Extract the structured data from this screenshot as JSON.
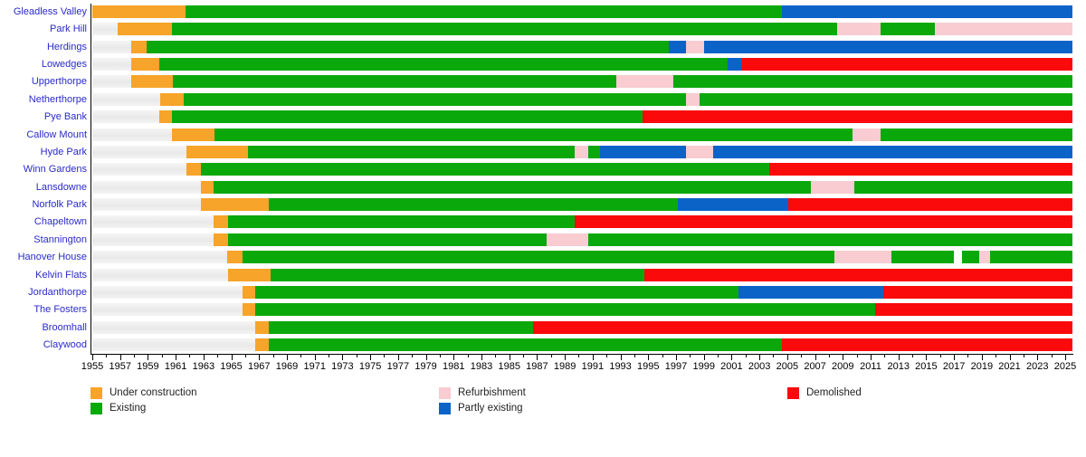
{
  "chart_data": {
    "type": "bar",
    "subtype": "gantt-timeline",
    "title": "",
    "xlabel": "",
    "ylabel": "",
    "axis": {
      "min_year": 1955,
      "max_year": 2025.5,
      "labeled_tick_years": [
        1955,
        1957,
        1959,
        1961,
        1963,
        1965,
        1967,
        1969,
        1971,
        1973,
        1975,
        1977,
        1979,
        1981,
        1983,
        1985,
        1987,
        1989,
        1991,
        1993,
        1995,
        1997,
        1999,
        2001,
        2003,
        2005,
        2007,
        2009,
        2011,
        2013,
        2015,
        2017,
        2019,
        2021,
        2023,
        2025
      ],
      "minor_tick_step": 1,
      "grid": false
    },
    "statuses": {
      "not_built": {
        "label": "",
        "color": "#eeeeee"
      },
      "under_construction": {
        "label": "Under construction",
        "color": "#f6a42a"
      },
      "existing": {
        "label": "Existing",
        "color": "#0ba80b"
      },
      "refurbishment": {
        "label": "Refurbishment",
        "color": "#f8ccd1"
      },
      "partly_existing": {
        "label": "Partly existing",
        "color": "#0b63c8"
      },
      "demolished": {
        "label": "Demolished",
        "color": "#fa0a0a"
      },
      "gap": {
        "label": "",
        "color": "#ffffff"
      }
    },
    "legend_columns": [
      {
        "items": [
          {
            "status": "under_construction"
          },
          {
            "status": "existing"
          }
        ]
      },
      {
        "items": [
          {
            "status": "refurbishment"
          },
          {
            "status": "partly_existing"
          }
        ]
      },
      {
        "items": [
          {
            "status": "demolished"
          }
        ]
      }
    ],
    "rows": [
      {
        "name": "Gleadless Valley",
        "segments": [
          [
            "under_construction",
            1955,
            1961.7
          ],
          [
            "existing",
            1961.7,
            2004.6
          ],
          [
            "partly_existing",
            2004.6,
            2025.5
          ]
        ]
      },
      {
        "name": "Park Hill",
        "segments": [
          [
            "not_built",
            1955,
            1956.8
          ],
          [
            "under_construction",
            1956.8,
            1960.7
          ],
          [
            "existing",
            1960.7,
            2008.6
          ],
          [
            "refurbishment",
            2008.6,
            2011.7
          ],
          [
            "existing",
            2011.7,
            2015.6
          ],
          [
            "refurbishment",
            2015.6,
            2025.5
          ]
        ]
      },
      {
        "name": "Herdings",
        "segments": [
          [
            "not_built",
            1955,
            1957.8
          ],
          [
            "under_construction",
            1957.8,
            1958.9
          ],
          [
            "existing",
            1958.9,
            1996.5
          ],
          [
            "partly_existing",
            1996.5,
            1997.7
          ],
          [
            "refurbishment",
            1997.7,
            1999.0
          ],
          [
            "partly_existing",
            1999.0,
            2025.5
          ]
        ]
      },
      {
        "name": "Lowedges",
        "segments": [
          [
            "not_built",
            1955,
            1957.8
          ],
          [
            "under_construction",
            1957.8,
            1959.8
          ],
          [
            "existing",
            1959.8,
            2000.7
          ],
          [
            "partly_existing",
            2000.7,
            2001.7
          ],
          [
            "demolished",
            2001.7,
            2025.5
          ]
        ]
      },
      {
        "name": "Upperthorpe",
        "segments": [
          [
            "not_built",
            1955,
            1957.8
          ],
          [
            "under_construction",
            1957.8,
            1960.8
          ],
          [
            "existing",
            1960.8,
            1992.7
          ],
          [
            "refurbishment",
            1992.7,
            1996.8
          ],
          [
            "existing",
            1996.8,
            2025.5
          ]
        ]
      },
      {
        "name": "Netherthorpe",
        "segments": [
          [
            "not_built",
            1955,
            1959.9
          ],
          [
            "under_construction",
            1959.9,
            1961.6
          ],
          [
            "existing",
            1961.6,
            1997.7
          ],
          [
            "refurbishment",
            1997.7,
            1998.7
          ],
          [
            "existing",
            1998.7,
            2025.5
          ]
        ]
      },
      {
        "name": "Pye Bank",
        "segments": [
          [
            "not_built",
            1955,
            1959.8
          ],
          [
            "under_construction",
            1959.8,
            1960.7
          ],
          [
            "existing",
            1960.7,
            1994.6
          ],
          [
            "demolished",
            1994.6,
            2025.5
          ]
        ]
      },
      {
        "name": "Callow Mount",
        "segments": [
          [
            "not_built",
            1955,
            1960.7
          ],
          [
            "under_construction",
            1960.7,
            1963.8
          ],
          [
            "existing",
            1963.8,
            2009.7
          ],
          [
            "refurbishment",
            2009.7,
            2011.7
          ],
          [
            "existing",
            2011.7,
            2025.5
          ]
        ]
      },
      {
        "name": "Hyde Park",
        "segments": [
          [
            "not_built",
            1955,
            1961.8
          ],
          [
            "under_construction",
            1961.8,
            1966.2
          ],
          [
            "existing",
            1966.2,
            1989.7
          ],
          [
            "refurbishment",
            1989.7,
            1990.7
          ],
          [
            "existing",
            1990.7,
            1991.5
          ],
          [
            "partly_existing",
            1991.5,
            1997.7
          ],
          [
            "refurbishment",
            1997.7,
            1999.7
          ],
          [
            "partly_existing",
            1999.7,
            2025.5
          ]
        ]
      },
      {
        "name": "Winn Gardens",
        "segments": [
          [
            "not_built",
            1955,
            1961.8
          ],
          [
            "under_construction",
            1961.8,
            1962.8
          ],
          [
            "existing",
            1962.8,
            2003.7
          ],
          [
            "demolished",
            2003.7,
            2025.5
          ]
        ]
      },
      {
        "name": "Lansdowne",
        "segments": [
          [
            "not_built",
            1955,
            1962.8
          ],
          [
            "under_construction",
            1962.8,
            1963.7
          ],
          [
            "existing",
            1963.7,
            2006.7
          ],
          [
            "refurbishment",
            2006.7,
            2009.8
          ],
          [
            "existing",
            2009.8,
            2025.5
          ]
        ]
      },
      {
        "name": "Norfolk Park",
        "segments": [
          [
            "not_built",
            1955,
            1962.8
          ],
          [
            "under_construction",
            1962.8,
            1967.7
          ],
          [
            "existing",
            1967.7,
            1997.1
          ],
          [
            "partly_existing",
            1997.1,
            2005.1
          ],
          [
            "demolished",
            2005.1,
            2025.5
          ]
        ]
      },
      {
        "name": "Chapeltown",
        "segments": [
          [
            "not_built",
            1955,
            1963.7
          ],
          [
            "under_construction",
            1963.7,
            1964.8
          ],
          [
            "existing",
            1964.8,
            1989.7
          ],
          [
            "demolished",
            1989.7,
            2025.5
          ]
        ]
      },
      {
        "name": "Stannington",
        "segments": [
          [
            "not_built",
            1955,
            1963.7
          ],
          [
            "under_construction",
            1963.7,
            1964.8
          ],
          [
            "existing",
            1964.8,
            1987.7
          ],
          [
            "refurbishment",
            1987.7,
            1990.7
          ],
          [
            "existing",
            1990.7,
            2025.5
          ]
        ]
      },
      {
        "name": "Hanover House",
        "segments": [
          [
            "not_built",
            1955,
            1964.7
          ],
          [
            "under_construction",
            1964.7,
            1965.8
          ],
          [
            "existing",
            1965.8,
            2008.4
          ],
          [
            "refurbishment",
            2008.4,
            2012.5
          ],
          [
            "existing",
            2012.5,
            2017.0
          ],
          [
            "gap",
            2017.0,
            2017.6
          ],
          [
            "existing",
            2017.6,
            2018.8
          ],
          [
            "refurbishment",
            2018.8,
            2019.6
          ],
          [
            "existing",
            2019.6,
            2025.5
          ]
        ]
      },
      {
        "name": "Kelvin Flats",
        "segments": [
          [
            "not_built",
            1955,
            1964.8
          ],
          [
            "under_construction",
            1964.8,
            1967.8
          ],
          [
            "existing",
            1967.8,
            1994.7
          ],
          [
            "demolished",
            1994.7,
            2025.5
          ]
        ]
      },
      {
        "name": "Jordanthorpe",
        "segments": [
          [
            "not_built",
            1955,
            1965.8
          ],
          [
            "under_construction",
            1965.8,
            1966.7
          ],
          [
            "existing",
            1966.7,
            2001.5
          ],
          [
            "partly_existing",
            2001.5,
            2011.9
          ],
          [
            "demolished",
            2011.9,
            2025.5
          ]
        ]
      },
      {
        "name": "The Fosters",
        "segments": [
          [
            "not_built",
            1955,
            1965.8
          ],
          [
            "under_construction",
            1965.8,
            1966.7
          ],
          [
            "existing",
            1966.7,
            2011.3
          ],
          [
            "demolished",
            2011.3,
            2025.5
          ]
        ]
      },
      {
        "name": "Broomhall",
        "segments": [
          [
            "not_built",
            1955,
            1966.7
          ],
          [
            "under_construction",
            1966.7,
            1967.7
          ],
          [
            "existing",
            1967.7,
            1986.7
          ],
          [
            "demolished",
            1986.7,
            2025.5
          ]
        ]
      },
      {
        "name": "Claywood",
        "segments": [
          [
            "not_built",
            1955,
            1966.7
          ],
          [
            "under_construction",
            1966.7,
            1967.7
          ],
          [
            "existing",
            1967.7,
            2004.6
          ],
          [
            "demolished",
            2004.6,
            2025.5
          ]
        ]
      }
    ]
  }
}
